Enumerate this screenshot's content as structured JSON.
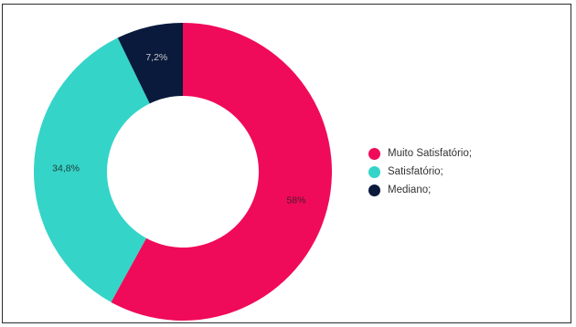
{
  "chart_data": {
    "type": "pie",
    "donut": true,
    "categories": [
      "Muito Satisfatório;",
      "Satisfatório;",
      "Mediano;"
    ],
    "values": [
      58,
      34.8,
      7.2
    ],
    "data_labels": [
      "58%",
      "34,8%",
      "7,2%"
    ],
    "colors": [
      "#f00a5a",
      "#35d4c8",
      "#0a1a3c"
    ],
    "label_colors": [
      "#4a1a2a",
      "#1f3a3a",
      "#c8c8c8"
    ],
    "legend_position": "right"
  }
}
